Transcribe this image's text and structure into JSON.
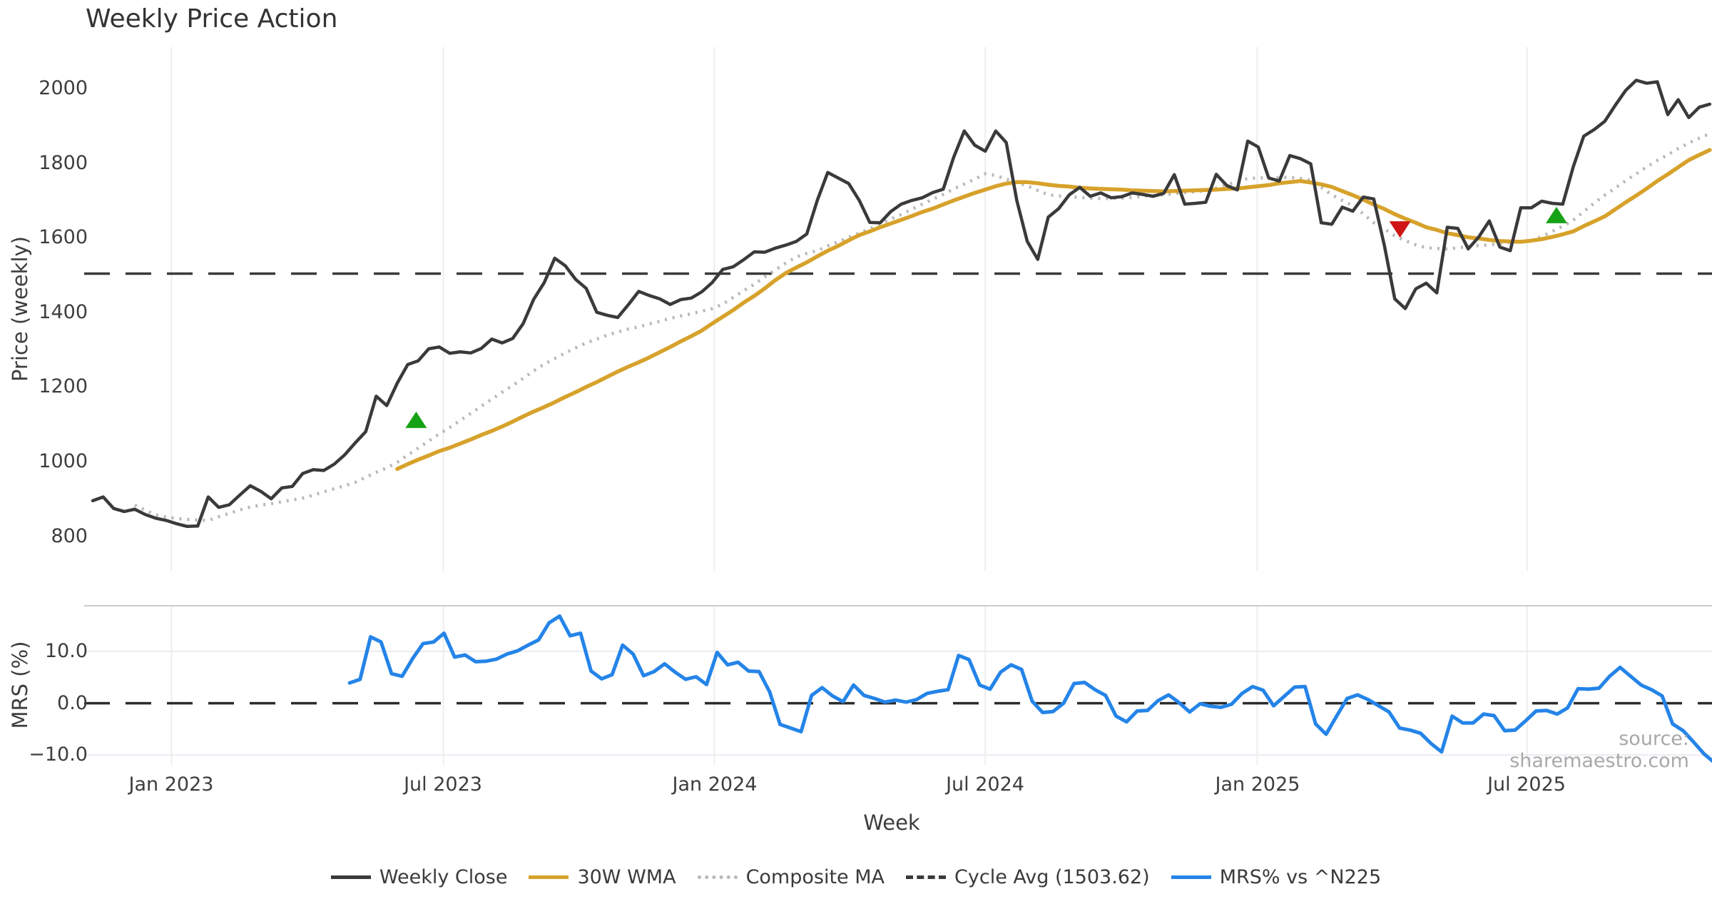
{
  "title": "Weekly Price Action",
  "source_note": "source: sharemaestro.com",
  "colors": {
    "close": "#3a3a3a",
    "wma": "#d7a22b",
    "composite": "#b8b8b8",
    "cycle_avg": "#3a3a3a",
    "mrs": "#2484e8",
    "buy_marker": "#16a216",
    "sell_marker": "#cf1515",
    "grid": "#ededed",
    "grid_h": "#eaeaf2",
    "spine": "#cccccc",
    "tick_text": "#3d3d3d",
    "source_text": "#a8a8a8"
  },
  "legend": {
    "items": [
      {
        "label": "Weekly Close",
        "color": "#3a3a3a",
        "style": "solid"
      },
      {
        "label": "30W WMA",
        "color": "#d7a22b",
        "style": "solid"
      },
      {
        "label": "Composite MA",
        "color": "#b8b8b8",
        "style": "dotted"
      },
      {
        "label": "Cycle Avg (1503.62)",
        "color": "#3a3a3a",
        "style": "dashed"
      },
      {
        "label": "MRS% vs ^N225",
        "color": "#2484e8",
        "style": "solid"
      }
    ]
  },
  "chart_data": [
    {
      "type": "line",
      "panel": "price",
      "title": "Weekly Price Action",
      "ylabel": "Price (weekly)",
      "xlabel": "Week",
      "ylim": [
        707,
        2111
      ],
      "grid": "vertical-only",
      "yticks": [
        "2000",
        "1800",
        "1600",
        "1400",
        "1200",
        "1000",
        "800"
      ],
      "ytick_values": [
        2000,
        1800,
        1600,
        1400,
        1200,
        1000,
        800
      ],
      "xticks": [
        {
          "label": "Jan 2023",
          "week": 7.5
        },
        {
          "label": "Jul 2023",
          "week": 33.4
        },
        {
          "label": "Jan 2024",
          "week": 59.2
        },
        {
          "label": "Jul 2024",
          "week": 85.0
        },
        {
          "label": "Jan 2025",
          "week": 110.9
        },
        {
          "label": "Jul 2025",
          "week": 136.6
        }
      ],
      "x_unit": "weeks since mid-Nov 2022, weekly step",
      "series": [
        {
          "name": "Weekly Close",
          "color": "#3a3a3a",
          "style": "solid",
          "width": 4.5,
          "start_week": 0,
          "step": 1,
          "values": [
            895,
            905,
            874,
            866,
            872,
            858,
            848,
            842,
            833,
            826,
            827,
            905,
            877,
            884,
            910,
            935,
            920,
            900,
            929,
            933,
            968,
            978,
            976,
            993,
            1018,
            1050,
            1080,
            1175,
            1150,
            1210,
            1260,
            1270,
            1302,
            1307,
            1290,
            1294,
            1291,
            1303,
            1328,
            1318,
            1330,
            1370,
            1435,
            1480,
            1545,
            1525,
            1488,
            1464,
            1400,
            1392,
            1386,
            1420,
            1456,
            1445,
            1436,
            1421,
            1434,
            1438,
            1455,
            1480,
            1515,
            1522,
            1541,
            1562,
            1561,
            1572,
            1580,
            1590,
            1610,
            1700,
            1775,
            1760,
            1745,
            1700,
            1641,
            1640,
            1670,
            1690,
            1700,
            1707,
            1721,
            1730,
            1816,
            1886,
            1848,
            1832,
            1886,
            1855,
            1700,
            1590,
            1542,
            1655,
            1678,
            1715,
            1735,
            1711,
            1720,
            1707,
            1710,
            1720,
            1716,
            1711,
            1719,
            1769,
            1690,
            1692,
            1695,
            1770,
            1740,
            1728,
            1859,
            1843,
            1760,
            1752,
            1820,
            1812,
            1798,
            1640,
            1636,
            1682,
            1671,
            1709,
            1704,
            1580,
            1436,
            1410,
            1463,
            1478,
            1452,
            1628,
            1625,
            1570,
            1602,
            1645,
            1575,
            1565,
            1680,
            1680,
            1698,
            1692,
            1690,
            1790,
            1872,
            1890,
            1912,
            1955,
            1995,
            2022,
            2014,
            2018,
            1930,
            1970,
            1922,
            1950,
            1958
          ]
        },
        {
          "name": "30W WMA",
          "color": "#d7a22b",
          "style": "solid",
          "width": 5.5,
          "start_week": 29,
          "step": 1,
          "values": [
            980,
            993,
            1005,
            1016,
            1028,
            1037,
            1048,
            1059,
            1071,
            1082,
            1094,
            1107,
            1121,
            1134,
            1146,
            1159,
            1173,
            1186,
            1200,
            1213,
            1227,
            1241,
            1254,
            1266,
            1279,
            1293,
            1307,
            1322,
            1336,
            1351,
            1370,
            1388,
            1406,
            1426,
            1444,
            1464,
            1486,
            1505,
            1520,
            1534,
            1550,
            1565,
            1578,
            1593,
            1607,
            1617,
            1628,
            1638,
            1648,
            1658,
            1669,
            1678,
            1689,
            1700,
            1710,
            1720,
            1729,
            1738,
            1745,
            1749,
            1749,
            1746,
            1742,
            1739,
            1737,
            1734,
            1732,
            1731,
            1730,
            1729,
            1727,
            1726,
            1725,
            1724,
            1725,
            1726,
            1727,
            1728,
            1729,
            1731,
            1732,
            1735,
            1738,
            1741,
            1746,
            1749,
            1752,
            1748,
            1743,
            1736,
            1725,
            1714,
            1702,
            1689,
            1677,
            1663,
            1651,
            1640,
            1628,
            1621,
            1612,
            1607,
            1601,
            1598,
            1594,
            1591,
            1590,
            1589,
            1592,
            1596,
            1602,
            1609,
            1617,
            1631,
            1644,
            1657,
            1676,
            1695,
            1713,
            1732,
            1752,
            1770,
            1789,
            1808,
            1822,
            1835
          ]
        },
        {
          "name": "Composite MA",
          "color": "#b8b8b8",
          "style": "dotted",
          "width": 4.5,
          "start_week": 4,
          "step": 1,
          "values": [
            883,
            870,
            857,
            851,
            847,
            845,
            843,
            842,
            852,
            861,
            870,
            878,
            883,
            887,
            892,
            897,
            902,
            910,
            919,
            927,
            935,
            944,
            958,
            971,
            983,
            998,
            1017,
            1036,
            1055,
            1074,
            1091,
            1110,
            1129,
            1148,
            1167,
            1186,
            1204,
            1223,
            1243,
            1261,
            1276,
            1291,
            1305,
            1318,
            1328,
            1339,
            1347,
            1355,
            1361,
            1369,
            1376,
            1384,
            1390,
            1396,
            1403,
            1410,
            1422,
            1440,
            1458,
            1475,
            1495,
            1513,
            1532,
            1548,
            1558,
            1565,
            1578,
            1589,
            1601,
            1612,
            1624,
            1637,
            1650,
            1662,
            1676,
            1690,
            1703,
            1716,
            1731,
            1744,
            1757,
            1771,
            1767,
            1757,
            1748,
            1739,
            1727,
            1715,
            1712,
            1710,
            1708,
            1706,
            1705,
            1705,
            1706,
            1708,
            1711,
            1713,
            1715,
            1718,
            1721,
            1723,
            1726,
            1733,
            1742,
            1750,
            1759,
            1760,
            1761,
            1761,
            1762,
            1759,
            1754,
            1735,
            1715,
            1700,
            1686,
            1664,
            1640,
            1623,
            1605,
            1592,
            1581,
            1573,
            1571,
            1570,
            1573,
            1576,
            1579,
            1581,
            1584,
            1587,
            1589,
            1592,
            1603,
            1617,
            1631,
            1647,
            1670,
            1693,
            1714,
            1733,
            1753,
            1771,
            1790,
            1807,
            1822,
            1839,
            1854,
            1867,
            1879
          ]
        }
      ],
      "hlines": [
        {
          "name": "Cycle Avg (1503.62)",
          "value": 1503.62,
          "style": "dashed",
          "color": "#3a3a3a"
        }
      ],
      "markers": [
        {
          "shape": "triangle-up",
          "color": "#16a216",
          "week": 30.8,
          "value": 1109
        },
        {
          "shape": "triangle-down",
          "color": "#cf1515",
          "week": 124.5,
          "value": 1625
        },
        {
          "shape": "triangle-up",
          "color": "#16a216",
          "week": 139.4,
          "value": 1658
        }
      ]
    },
    {
      "type": "line",
      "panel": "mrs",
      "ylabel": "MRS (%)",
      "ylim": [
        -11.9,
        18.8
      ],
      "yticks": [
        "10.0",
        "0.0",
        "−10.0"
      ],
      "ytick_values": [
        10,
        0,
        -10
      ],
      "series": [
        {
          "name": "MRS% vs ^N225",
          "color": "#2484e8",
          "style": "solid",
          "width": 5,
          "start_week": 24.46,
          "step": 1,
          "values": [
            3.9,
            4.6,
            12.8,
            11.8,
            5.7,
            5.2,
            8.6,
            11.5,
            11.8,
            13.5,
            8.9,
            9.3,
            8.0,
            8.1,
            8.5,
            9.5,
            10.1,
            11.2,
            12.2,
            15.5,
            16.8,
            13.0,
            13.5,
            6.2,
            4.7,
            5.5,
            11.2,
            9.5,
            5.3,
            6.1,
            7.6,
            6.0,
            4.6,
            5.1,
            3.6,
            9.8,
            7.4,
            7.9,
            6.2,
            6.1,
            2.2,
            -4.1,
            -4.8,
            -5.5,
            1.5,
            3.0,
            1.4,
            0.3,
            3.5,
            1.5,
            0.9,
            0.2,
            0.6,
            0.2,
            0.7,
            1.9,
            2.3,
            2.6,
            9.2,
            8.4,
            3.5,
            2.7,
            6.0,
            7.4,
            6.5,
            0.4,
            -1.8,
            -1.6,
            0.0,
            3.8,
            4.0,
            2.6,
            1.5,
            -2.5,
            -3.6,
            -1.5,
            -1.4,
            0.5,
            1.6,
            0.1,
            -1.7,
            -0.1,
            -0.6,
            -0.8,
            -0.2,
            1.9,
            3.2,
            2.5,
            -0.5,
            1.3,
            3.1,
            3.2,
            -4.0,
            -6.0,
            -2.5,
            0.9,
            1.6,
            0.7,
            -0.5,
            -1.7,
            -4.8,
            -5.2,
            -5.8,
            -7.8,
            -9.4,
            -2.5,
            -3.8,
            -3.8,
            -2.1,
            -2.4,
            -5.3,
            -5.2,
            -3.4,
            -1.5,
            -1.4,
            -2.1,
            -0.9,
            2.8,
            2.7,
            2.9,
            5.2,
            6.9,
            5.2,
            3.5,
            2.6,
            1.4,
            -4.0,
            -5.3,
            -7.5,
            -9.8,
            -11.5
          ]
        }
      ],
      "hlines": [
        {
          "name": "zero",
          "value": 0,
          "style": "dashed",
          "color": "#2b2b2b"
        }
      ]
    }
  ]
}
